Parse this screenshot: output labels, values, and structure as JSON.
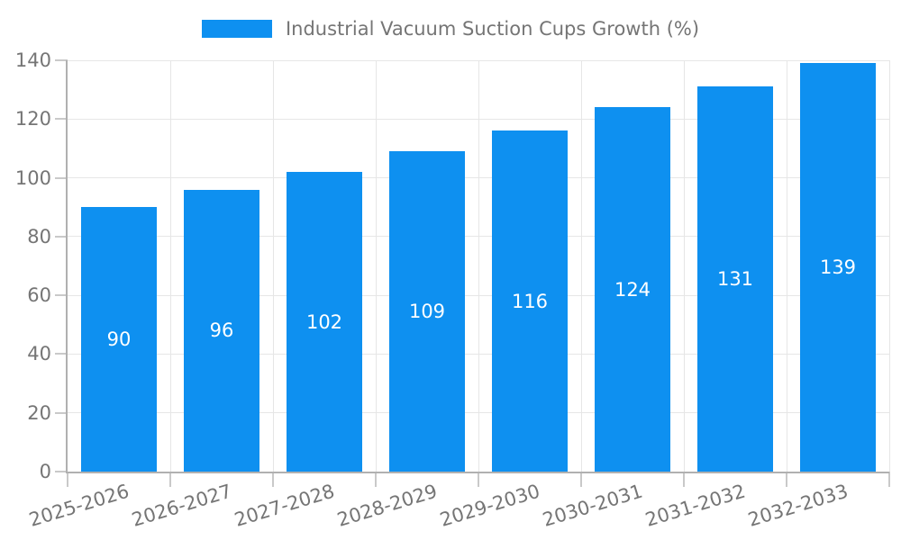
{
  "legend": {
    "label": "Industrial Vacuum Suction Cups Growth (%)"
  },
  "chart_data": {
    "type": "bar",
    "title": "Industrial Vacuum Suction Cups Growth (%)",
    "categories": [
      "2025-2026",
      "2026-2027",
      "2027-2028",
      "2028-2029",
      "2029-2030",
      "2030-2031",
      "2031-2032",
      "2032-2033"
    ],
    "values": [
      90,
      96,
      102,
      109,
      116,
      124,
      131,
      139
    ],
    "series": [
      {
        "name": "Industrial Vacuum Suction Cups Growth (%)",
        "values": [
          90,
          96,
          102,
          109,
          116,
          124,
          131,
          139
        ]
      }
    ],
    "xlabel": "",
    "ylabel": "",
    "ylim": [
      0,
      140
    ],
    "yticks": [
      0,
      20,
      40,
      60,
      80,
      100,
      120,
      140
    ],
    "grid": true,
    "legend_position": "top",
    "bar_value_labels": "centered-inside-white",
    "x_label_rotation_deg": -17,
    "colors": {
      "bar": "#0E90F0",
      "axis_text": "#757575",
      "bar_label_text": "#FFFFFF",
      "gridline": "#E6E6E6",
      "axis_line": "#B0B0B0",
      "tick": "#C9C9C9",
      "background": "#FFFFFF"
    }
  }
}
